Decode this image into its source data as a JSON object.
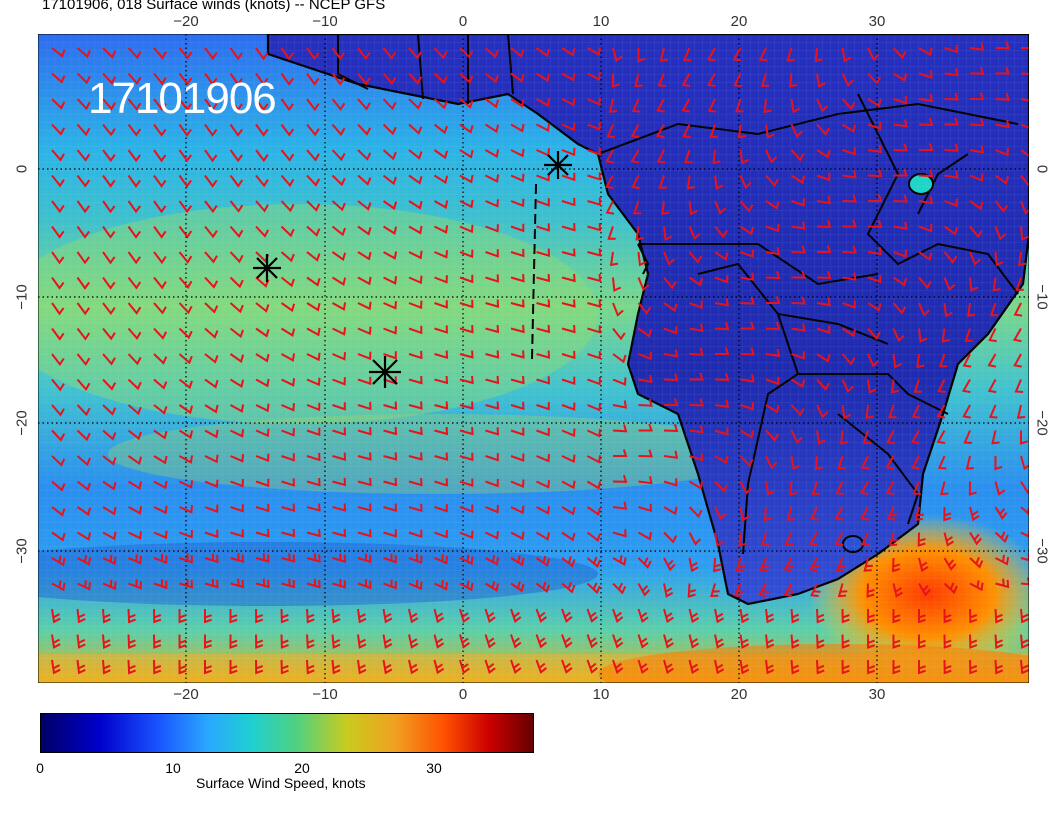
{
  "title": "17101906, 018 Surface winds (knots) -- NCEP GFS",
  "overlay_date": "17101906",
  "axes": {
    "lon_ticks_top": [
      "−20",
      "−10",
      "0",
      "10",
      "20",
      "30"
    ],
    "lon_ticks_bottom": [
      "−20",
      "−10",
      "0",
      "10",
      "20",
      "30"
    ],
    "lat_ticks": [
      "0",
      "−10",
      "−20",
      "−30"
    ],
    "lon_range": [
      -30,
      41
    ],
    "lat_range": [
      -40,
      10
    ]
  },
  "colorbar": {
    "label": "Surface Wind Speed, knots",
    "ticks": [
      "0",
      "10",
      "20",
      "30"
    ],
    "range": [
      0,
      37
    ]
  },
  "colors": {
    "barb": "#e8131a",
    "land_low_wind": "#1c1fb0",
    "ocean_mid_wind": "#26c6d8",
    "high_wind": "#ff6a00",
    "coastline": "#000000"
  },
  "markers": [
    "cross-marker",
    "cross-marker",
    "cross-marker"
  ],
  "icons": [
    "wind-barb-icon",
    "cross-marker-icon"
  ]
}
